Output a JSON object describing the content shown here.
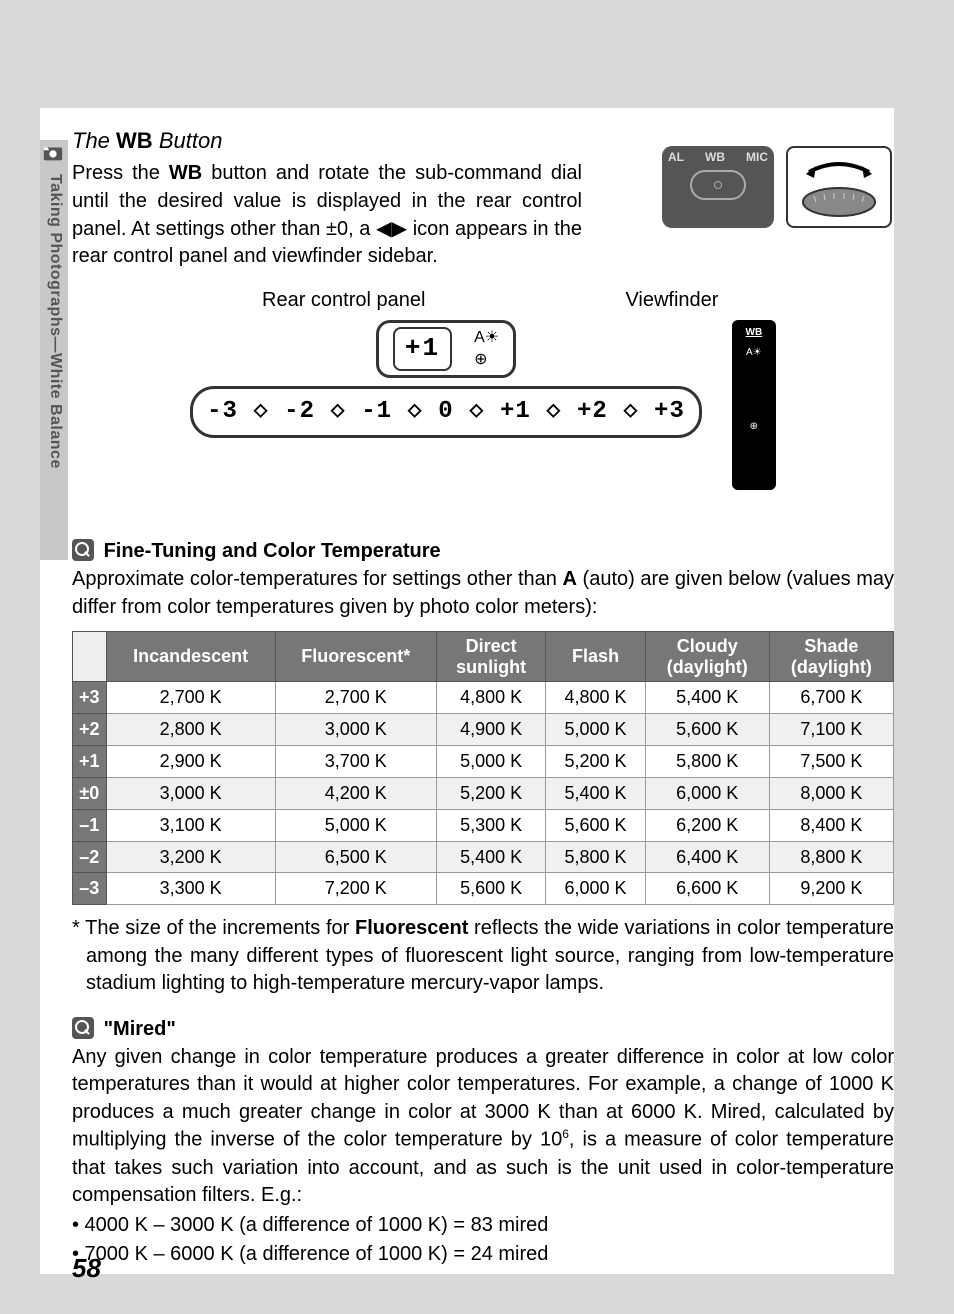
{
  "sidebar": {
    "label": "Taking Photographs—White Balance"
  },
  "section1": {
    "title_pre": "The",
    "title_bold": "WB",
    "title_post": "Button",
    "body_pre": "Press the ",
    "body_bold1": "WB",
    "body_mid": " button and rotate the sub-command dial until the desired value is displayed in the rear control panel.  At settings other than ±0, a ",
    "body_icon_alt": "◀▶",
    "body_post": " icon appears in the rear control panel and viewfinder sidebar."
  },
  "panels": {
    "rear_label": "Rear control panel",
    "viewfinder_label": "Viewfinder",
    "lcd_value": "+1",
    "scale": "-3 ◇ -2 ◇ -1 ◇  0 ◇ +1 ◇ +2 ◇ +3"
  },
  "wb_button": {
    "left_label": "AL",
    "center_label": "WB",
    "right_label": "MIC"
  },
  "section2": {
    "title": "Fine-Tuning and Color Temperature",
    "intro_pre": "Approximate color-temperatures for settings other than ",
    "intro_bold": "A",
    "intro_post": " (auto) are given below (values may differ from color temperatures given by photo color meters):"
  },
  "table": {
    "headers": [
      "",
      "Incandescent",
      "Fluorescent*",
      "Direct sunlight",
      "Flash",
      "Cloudy (daylight)",
      "Shade (daylight)"
    ],
    "rows": [
      {
        "h": "+3",
        "v": [
          "2,700 K",
          "2,700 K",
          "4,800 K",
          "4,800 K",
          "5,400 K",
          "6,700 K"
        ]
      },
      {
        "h": "+2",
        "v": [
          "2,800 K",
          "3,000 K",
          "4,900 K",
          "5,000 K",
          "5,600 K",
          "7,100 K"
        ]
      },
      {
        "h": "+1",
        "v": [
          "2,900 K",
          "3,700 K",
          "5,000 K",
          "5,200 K",
          "5,800 K",
          "7,500 K"
        ]
      },
      {
        "h": "±0",
        "v": [
          "3,000 K",
          "4,200 K",
          "5,200 K",
          "5,400 K",
          "6,000 K",
          "8,000 K"
        ]
      },
      {
        "h": "–1",
        "v": [
          "3,100 K",
          "5,000 K",
          "5,300 K",
          "5,600 K",
          "6,200 K",
          "8,400 K"
        ]
      },
      {
        "h": "–2",
        "v": [
          "3,200 K",
          "6,500 K",
          "5,400 K",
          "5,800 K",
          "6,400 K",
          "8,800 K"
        ]
      },
      {
        "h": "–3",
        "v": [
          "3,300 K",
          "7,200 K",
          "5,600 K",
          "6,000 K",
          "6,600 K",
          "9,200 K"
        ]
      }
    ]
  },
  "footnote": {
    "pre": "* The size of the increments for ",
    "bold": "Fluorescent",
    "post": " reflects the wide variations in color temperature among the many different types of fluorescent light source, ranging from low-temperature stadium lighting to high-temperature mercury-vapor lamps."
  },
  "section3": {
    "title": "\"Mired\"",
    "body_pre": "Any given change in color temperature produces a greater difference in color at low color temperatures than it would at higher color temperatures.  For example, a change of 1000 K produces a much greater change in color at 3000 K than at 6000 K.  Mired, calculated by multiplying the inverse of the color temperature by 10",
    "body_sup": "6",
    "body_post": ", is a measure of color temperature that takes such variation into account, and as such is the unit used in color-temperature compensation filters.  E.g.:",
    "bullet1": "• 4000 K – 3000 K (a difference of 1000 K) = 83 mired",
    "bullet2": "• 7000 K – 6000 K (a difference of 1000 K) = 24 mired"
  },
  "page_number": "58",
  "colors": {
    "page_bg": "#d9d9d9",
    "content_bg": "#ffffff",
    "sidebar_bg": "#c8c8c8",
    "table_header_bg": "#777777",
    "table_rowhead_bg": "#777777"
  }
}
